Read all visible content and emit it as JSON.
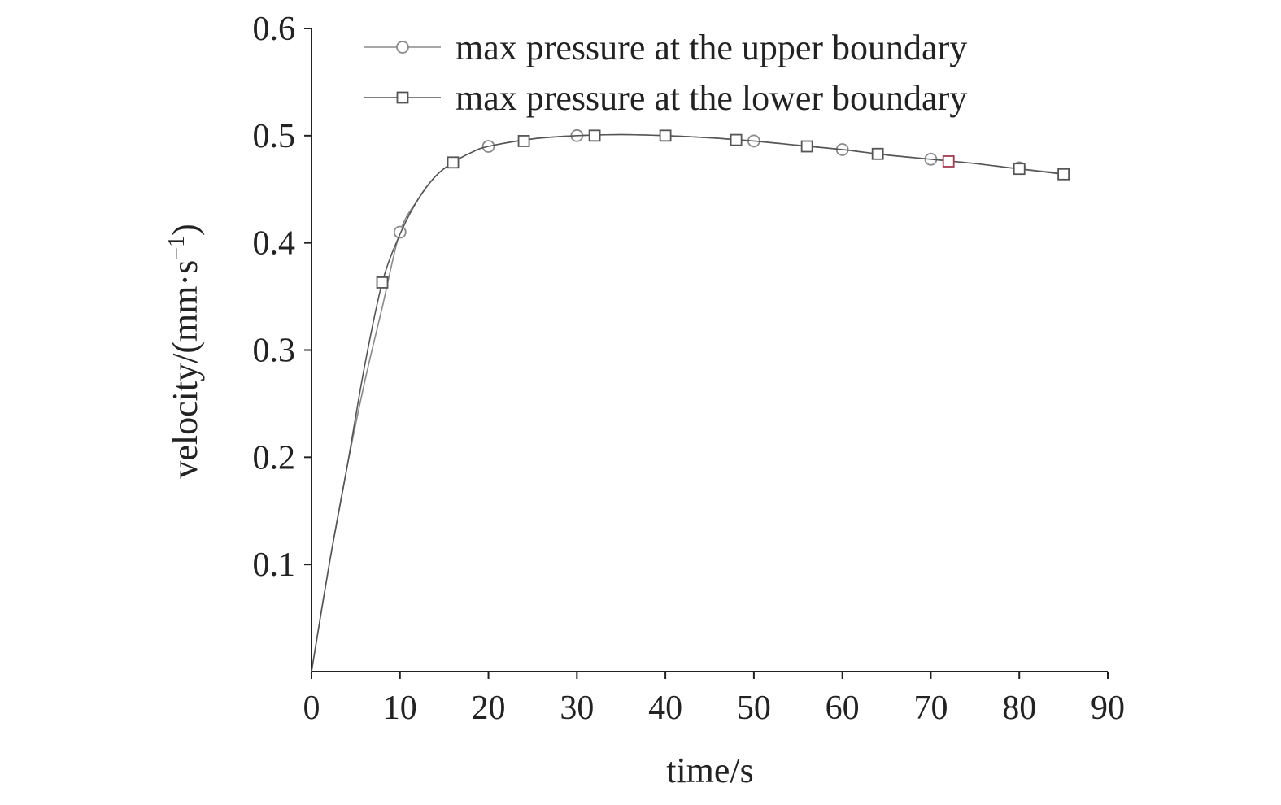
{
  "chart_data": {
    "type": "line",
    "title": "",
    "xlabel": "time/s",
    "ylabel_main": "velocity/(mm·s",
    "ylabel_sup": "−1",
    "ylabel_close": ")",
    "xlim": [
      0,
      90
    ],
    "ylim": [
      0,
      0.6
    ],
    "x_ticks": [
      0,
      10,
      20,
      30,
      40,
      50,
      60,
      70,
      80,
      90
    ],
    "x_tick_labels": [
      "0",
      "10",
      "20",
      "30",
      "40",
      "50",
      "60",
      "70",
      "80",
      "90"
    ],
    "y_ticks": [
      0.1,
      0.2,
      0.3,
      0.4,
      0.5,
      0.6
    ],
    "y_tick_labels": [
      "0.1",
      "0.2",
      "0.3",
      "0.4",
      "0.5",
      "0.6"
    ],
    "grid": false,
    "legend_position": "top-right",
    "series": [
      {
        "name": "max pressure at the upper boundary",
        "marker": "circle",
        "color": "#8a8a8a",
        "x": [
          0,
          2,
          4,
          6,
          8,
          10,
          12,
          14,
          16,
          18,
          20,
          25,
          30,
          35,
          40,
          45,
          50,
          55,
          60,
          65,
          70,
          75,
          80,
          85
        ],
        "y": [
          0.0,
          0.1,
          0.19,
          0.27,
          0.34,
          0.41,
          0.44,
          0.462,
          0.475,
          0.484,
          0.49,
          0.497,
          0.5,
          0.501,
          0.5,
          0.498,
          0.495,
          0.491,
          0.487,
          0.482,
          0.478,
          0.474,
          0.469,
          0.465
        ],
        "marker_x": [
          10,
          20,
          30,
          50,
          60,
          70,
          80
        ],
        "marker_y": [
          0.41,
          0.49,
          0.5,
          0.495,
          0.487,
          0.478,
          0.47
        ]
      },
      {
        "name": "max pressure at the lower boundary",
        "marker": "square",
        "color": "#555555",
        "x": [
          0,
          2,
          4,
          6,
          8,
          10,
          12,
          14,
          16,
          18,
          20,
          25,
          30,
          35,
          40,
          45,
          50,
          55,
          60,
          65,
          70,
          75,
          80,
          85
        ],
        "y": [
          0.0,
          0.1,
          0.19,
          0.285,
          0.363,
          0.408,
          0.44,
          0.462,
          0.475,
          0.484,
          0.49,
          0.497,
          0.5,
          0.501,
          0.5,
          0.498,
          0.495,
          0.491,
          0.487,
          0.482,
          0.478,
          0.474,
          0.469,
          0.464
        ],
        "marker_x": [
          8,
          16,
          24,
          32,
          40,
          48,
          56,
          64,
          72,
          80,
          85
        ],
        "marker_y": [
          0.363,
          0.475,
          0.495,
          0.5,
          0.5,
          0.496,
          0.49,
          0.483,
          0.476,
          0.469,
          0.464
        ],
        "highlight_marker_index": 8,
        "highlight_color": "#a33b52"
      }
    ]
  }
}
